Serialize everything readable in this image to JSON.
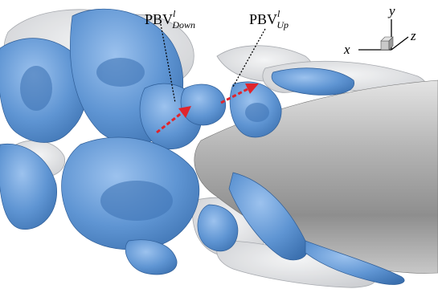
{
  "labels": {
    "pbv_down": {
      "base": "PBV",
      "sup": "l",
      "sub": "Down"
    },
    "pbv_up": {
      "base": "PBV",
      "sup": "l",
      "sub": "Up"
    }
  },
  "axes": {
    "x": "x",
    "y": "y",
    "z": "z"
  },
  "colors": {
    "vortex_blue": "#5f95d3",
    "vortex_blue_dark": "#3f74b5",
    "translucent_gray": "#d9dbdf",
    "body_gray": "#a3a4a6",
    "arrow_red": "#e0242c",
    "background": "#ffffff"
  }
}
